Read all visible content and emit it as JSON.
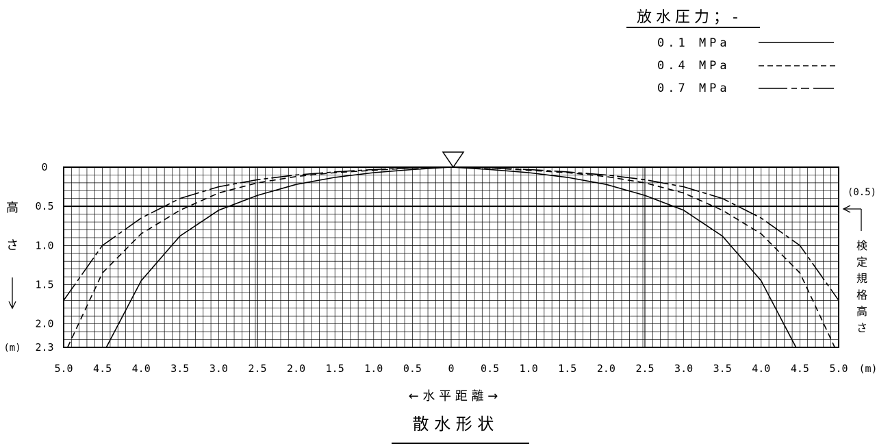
{
  "legend": {
    "title": "放水圧力；-",
    "items": [
      {
        "label": "0.1 MPa",
        "style": "solid"
      },
      {
        "label": "0.4 MPa",
        "style": "dashed"
      },
      {
        "label": "0.7 MPa",
        "style": "dashdot"
      }
    ]
  },
  "axes": {
    "y_label_chars": [
      "高",
      "さ"
    ],
    "y_arrow": "↓",
    "y_unit": "(m)",
    "y_ticks": [
      "0",
      "0.5",
      "1.0",
      "1.5",
      "2.0",
      "2.3"
    ],
    "x_ticks": [
      "5.0",
      "4.5",
      "4.0",
      "3.5",
      "3.0",
      "2.5",
      "2.0",
      "1.5",
      "1.0",
      "0.5",
      "0",
      "0.5",
      "1.0",
      "1.5",
      "2.0",
      "2.5",
      "3.0",
      "3.5",
      "4.0",
      "4.5",
      "5.0"
    ],
    "x_unit": "(m)",
    "x_label": "← 水 平 距 離 →",
    "right_value": "(0.5)",
    "right_label_chars": [
      "検",
      "定",
      "規",
      "格",
      "高",
      "さ"
    ]
  },
  "caption": "散 水 形 状",
  "chart_data": {
    "type": "line",
    "title": "散 水 形 状",
    "xlabel": "水平距離",
    "ylabel": "高さ",
    "x_unit": "m",
    "y_unit": "m",
    "xlim": [
      -5.0,
      5.0
    ],
    "ylim": [
      0,
      2.3
    ],
    "y_inverted": true,
    "grid": true,
    "reference_line_y": 0.5,
    "legend_position": "top-right",
    "series": [
      {
        "name": "0.1 MPa",
        "style": "solid",
        "x": [
          -4.45,
          -4.0,
          -3.5,
          -3.0,
          -2.5,
          -2.0,
          -1.5,
          -1.0,
          -0.5,
          0,
          0.5,
          1.0,
          1.5,
          2.0,
          2.5,
          3.0,
          3.5,
          4.0,
          4.45
        ],
        "y": [
          2.3,
          1.45,
          0.88,
          0.55,
          0.36,
          0.22,
          0.13,
          0.07,
          0.03,
          0,
          0.03,
          0.07,
          0.13,
          0.22,
          0.36,
          0.55,
          0.88,
          1.45,
          2.3
        ]
      },
      {
        "name": "0.4 MPa",
        "style": "dashed",
        "x": [
          -4.95,
          -4.5,
          -4.0,
          -3.5,
          -3.0,
          -2.5,
          -2.0,
          -1.5,
          -1.0,
          -0.5,
          0,
          0.5,
          1.0,
          1.5,
          2.0,
          2.5,
          3.0,
          3.5,
          4.0,
          4.5,
          4.95
        ],
        "y": [
          2.3,
          1.35,
          0.85,
          0.55,
          0.33,
          0.2,
          0.12,
          0.07,
          0.04,
          0.01,
          0,
          0.01,
          0.04,
          0.07,
          0.12,
          0.2,
          0.33,
          0.55,
          0.85,
          1.35,
          2.3
        ]
      },
      {
        "name": "0.7 MPa",
        "style": "dashdot",
        "x": [
          -5.0,
          -4.5,
          -4.0,
          -3.5,
          -3.0,
          -2.5,
          -2.0,
          -1.5,
          -1.0,
          -0.5,
          0,
          0.5,
          1.0,
          1.5,
          2.0,
          2.5,
          3.0,
          3.5,
          4.0,
          4.5,
          5.0
        ],
        "y": [
          1.7,
          1.0,
          0.65,
          0.4,
          0.25,
          0.16,
          0.1,
          0.06,
          0.03,
          0.01,
          0,
          0.01,
          0.03,
          0.06,
          0.1,
          0.16,
          0.25,
          0.4,
          0.65,
          1.0,
          1.7
        ]
      }
    ]
  }
}
